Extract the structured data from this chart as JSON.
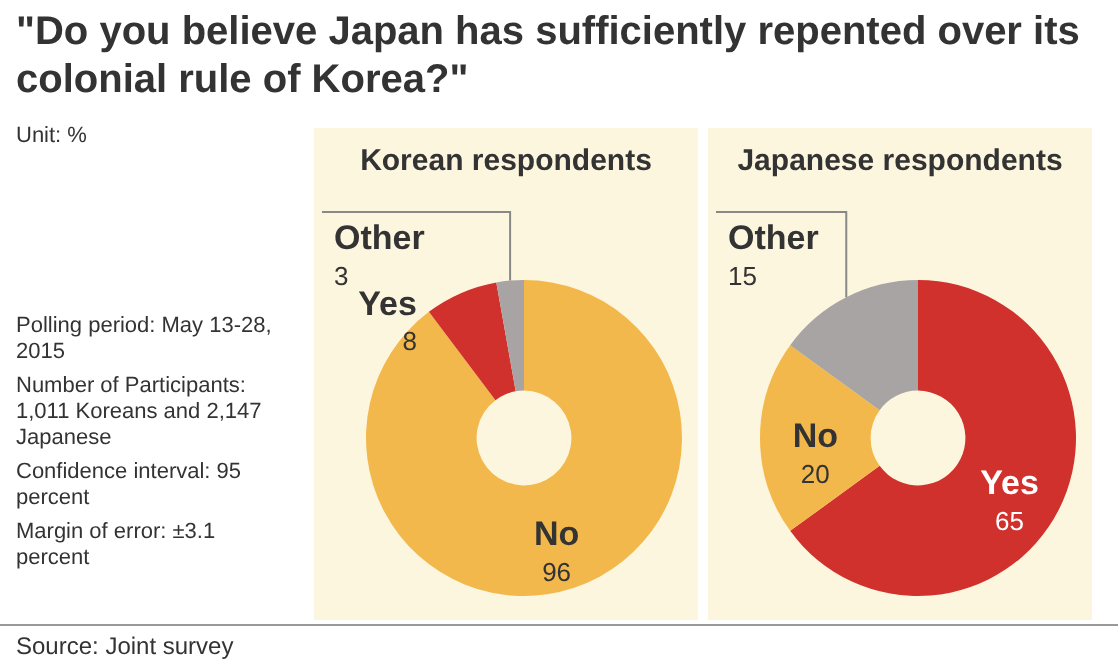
{
  "chart_data": [
    {
      "type": "other",
      "title": "\"Do you believe Japan has sufficiently repented over its colonial rule of Korea?\"",
      "annotations": [
        "Unit: %",
        "Polling period: May 13-28, 2015",
        "Number of Participants: 1,011 Koreans and 2,147 Japanese",
        "Confidence interval: 95 percent",
        "Margin of error: ±3.1 percent",
        "Source: Joint survey"
      ]
    },
    {
      "type": "donut",
      "title": "Korean respondents",
      "categories": [
        "No",
        "Yes",
        "Other"
      ],
      "values": [
        96,
        8,
        3
      ],
      "colors": [
        "#f2b84b",
        "#d0312d",
        "#a7a4a3"
      ],
      "data_labels": true,
      "legend": false
    },
    {
      "type": "donut",
      "title": "Japanese respondents",
      "categories": [
        "Yes",
        "No",
        "Other"
      ],
      "values": [
        65,
        20,
        15
      ],
      "colors": [
        "#d0312d",
        "#f2b84b",
        "#a7a4a3"
      ],
      "data_labels": true,
      "legend": false
    }
  ]
}
